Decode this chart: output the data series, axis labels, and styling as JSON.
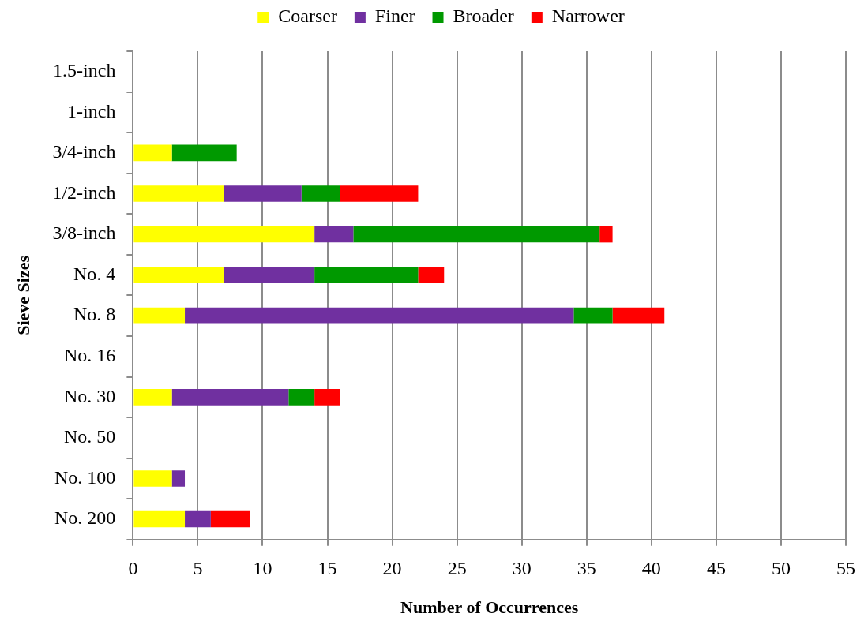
{
  "chart_data": {
    "type": "bar",
    "orientation": "horizontal",
    "stacked": true,
    "xlabel": "Number of Occurrences",
    "ylabel": "Sieve Sizes",
    "categories": [
      "1.5-inch",
      "1-inch",
      "3/4-inch",
      "1/2-inch",
      "3/8-inch",
      "No. 4",
      "No. 8",
      "No. 16",
      "No. 30",
      "No. 50",
      "No. 100",
      "No. 200"
    ],
    "series": [
      {
        "name": "Coarser",
        "color": "#ffff00",
        "values": [
          0,
          0,
          3,
          7,
          14,
          7,
          4,
          0,
          3,
          0,
          3,
          4
        ]
      },
      {
        "name": "Finer",
        "color": "#7030a0",
        "values": [
          0,
          0,
          0,
          6,
          3,
          7,
          30,
          0,
          9,
          0,
          1,
          2
        ]
      },
      {
        "name": "Broader",
        "color": "#009900",
        "values": [
          0,
          0,
          5,
          3,
          19,
          8,
          3,
          0,
          2,
          0,
          0,
          0
        ]
      },
      {
        "name": "Narrower",
        "color": "#ff0000",
        "values": [
          0,
          0,
          0,
          6,
          1,
          2,
          4,
          0,
          2,
          0,
          0,
          3
        ]
      }
    ],
    "xlim": [
      0,
      55
    ],
    "xticks": [
      0,
      5,
      10,
      15,
      20,
      25,
      30,
      35,
      40,
      45,
      50,
      55
    ],
    "grid": "x",
    "legend": "top"
  }
}
